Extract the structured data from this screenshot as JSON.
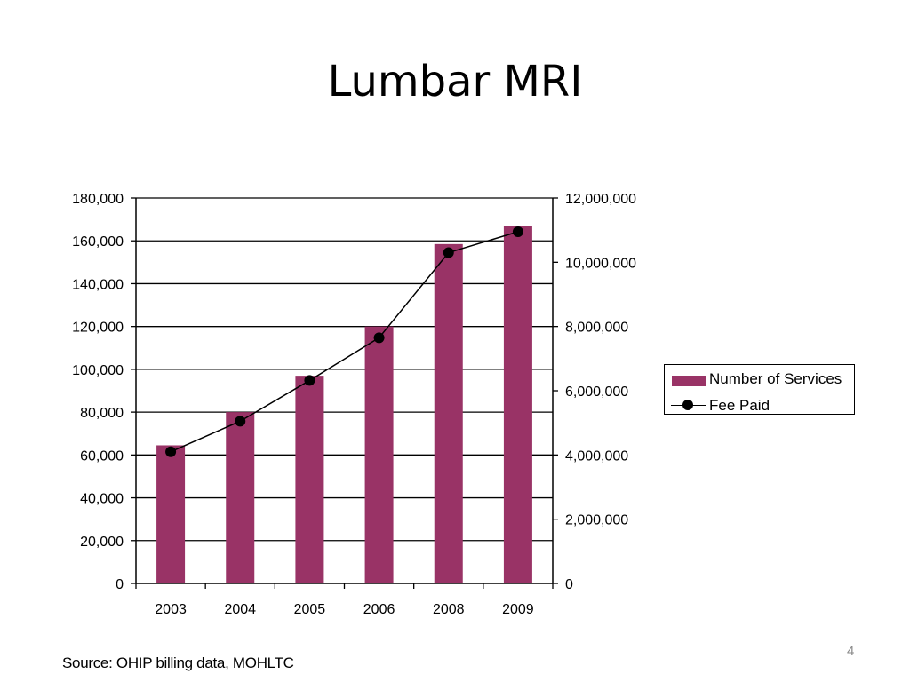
{
  "slide": {
    "title": "Lumbar MRI",
    "source": "Source: OHIP billing data, MOHLTC",
    "page_number": "4"
  },
  "legend": {
    "bar_label": "Number of Services",
    "line_label": "Fee Paid"
  },
  "colors": {
    "bar": "#993366",
    "line": "#000000"
  },
  "chart_data": {
    "type": "bar",
    "categories": [
      "2003",
      "2004",
      "2005",
      "2006",
      "2008",
      "2009"
    ],
    "series": [
      {
        "name": "Number of Services",
        "type": "bar",
        "axis": "left",
        "values": [
          64500,
          80000,
          97000,
          120000,
          158500,
          167000
        ]
      },
      {
        "name": "Fee Paid",
        "type": "line",
        "axis": "right",
        "values": [
          4100000,
          5050000,
          6320000,
          7650000,
          10300000,
          10950000
        ]
      }
    ],
    "y_left": {
      "min": 0,
      "max": 180000,
      "step": 20000,
      "tick_labels": [
        "0",
        "20,000",
        "40,000",
        "60,000",
        "80,000",
        "100,000",
        "120,000",
        "140,000",
        "160,000",
        "180,000"
      ]
    },
    "y_right": {
      "min": 0,
      "max": 12000000,
      "step": 2000000,
      "tick_labels": [
        "0",
        "2,000,000",
        "4,000,000",
        "6,000,000",
        "8,000,000",
        "10,000,000",
        "12,000,000"
      ]
    },
    "grid": true,
    "legend_position": "right"
  }
}
